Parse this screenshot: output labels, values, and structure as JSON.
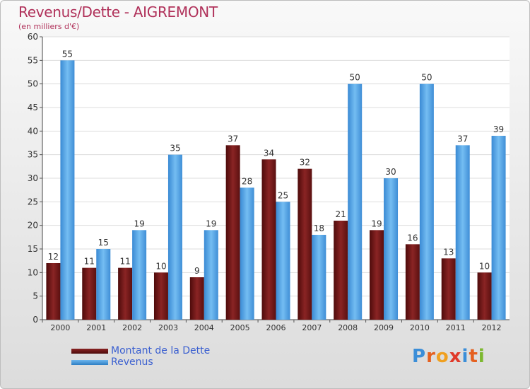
{
  "header": {
    "title": "Revenus/Dette - AIGREMONT",
    "subtitle": "(en milliers d'€)"
  },
  "legend": {
    "items": [
      {
        "label": "Montant de la Dette",
        "color": "#6b1515"
      },
      {
        "label": "Revenus",
        "color": "#4a9ee0"
      }
    ]
  },
  "logo": {
    "text": "Proxiti"
  },
  "chart_data": {
    "type": "bar",
    "categories": [
      "2000",
      "2001",
      "2002",
      "2003",
      "2004",
      "2005",
      "2006",
      "2007",
      "2008",
      "2009",
      "2010",
      "2011",
      "2012"
    ],
    "series": [
      {
        "name": "Montant de la Dette",
        "color": "#6b1515",
        "values": [
          12,
          11,
          11,
          10,
          9,
          37,
          34,
          32,
          21,
          19,
          16,
          13,
          10
        ]
      },
      {
        "name": "Revenus",
        "color": "#4a9ee0",
        "values": [
          55,
          15,
          19,
          35,
          19,
          28,
          25,
          18,
          50,
          30,
          50,
          37,
          39
        ]
      }
    ],
    "title": "Revenus/Dette - AIGREMONT",
    "subtitle": "(en milliers d'€)",
    "ylim": [
      0,
      60
    ],
    "yticks": [
      0,
      5,
      10,
      15,
      20,
      25,
      30,
      35,
      40,
      45,
      50,
      55,
      60
    ],
    "grid": true,
    "legend_position": "bottom-left"
  }
}
